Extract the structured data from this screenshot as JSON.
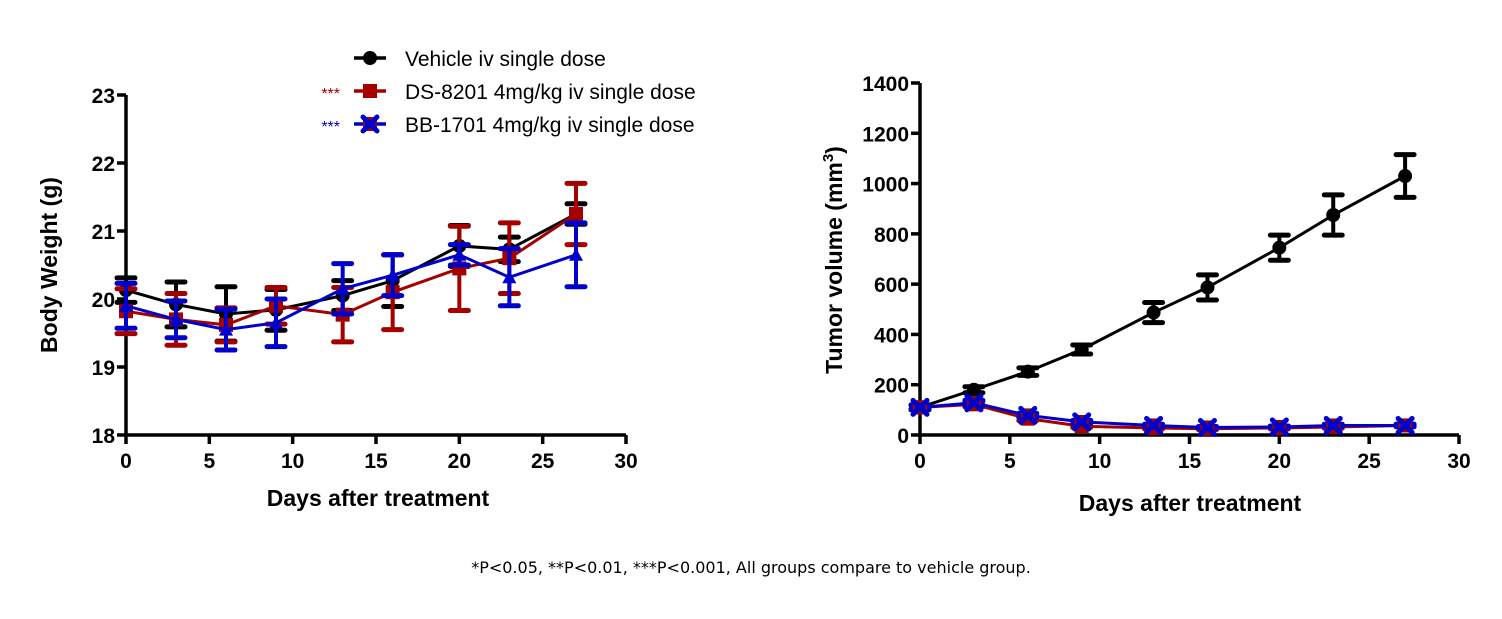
{
  "legend": [
    {
      "label": "Vehicle iv single dose",
      "color": "#000000",
      "marker": "circle",
      "sig": ""
    },
    {
      "label": "DS-8201 4mg/kg iv single dose",
      "color": "#a50000",
      "marker": "square",
      "sig": "***"
    },
    {
      "label": "BB-1701 4mg/kg iv single dose",
      "color": "#0000cc",
      "marker": "x",
      "sig": "***"
    }
  ],
  "footnote": "*P<0.05, **P<0.01, ***P<0.001,  All groups compare to vehicle group.",
  "chart_data": [
    {
      "type": "line",
      "title": "",
      "xlabel": "Days after treatment",
      "ylabel": "Body Weight (g)",
      "xlim": [
        0,
        30
      ],
      "ylim": [
        18,
        23
      ],
      "xticks": [
        "0",
        "5",
        "10",
        "15",
        "20",
        "25",
        "30"
      ],
      "yticks": [
        "18",
        "19",
        "20",
        "21",
        "22",
        "23"
      ],
      "grid": false,
      "x": [
        0,
        3,
        6,
        9,
        13,
        16,
        20,
        23,
        27
      ],
      "series": [
        {
          "name": "Vehicle iv single dose",
          "color": "#000000",
          "marker": "circle",
          "values": [
            20.13,
            19.92,
            19.78,
            19.84,
            20.05,
            20.27,
            20.78,
            20.73,
            21.25
          ],
          "errors": [
            0.18,
            0.33,
            0.4,
            0.3,
            0.22,
            0.38,
            0.3,
            0.18,
            0.15
          ]
        },
        {
          "name": "DS-8201 4mg/kg iv single dose",
          "color": "#a50000",
          "marker": "square",
          "values": [
            19.82,
            19.7,
            19.62,
            19.9,
            19.77,
            20.1,
            20.45,
            20.6,
            21.25
          ],
          "errors": [
            0.33,
            0.38,
            0.25,
            0.27,
            0.4,
            0.55,
            0.62,
            0.52,
            0.45
          ]
        },
        {
          "name": "BB-1701 4mg/kg iv single dose",
          "color": "#0000cc",
          "marker": "triangle",
          "values": [
            19.9,
            19.7,
            19.55,
            19.65,
            20.15,
            20.35,
            20.65,
            20.32,
            20.65
          ],
          "errors": [
            0.33,
            0.27,
            0.3,
            0.35,
            0.37,
            0.3,
            0.15,
            0.42,
            0.47
          ]
        }
      ]
    },
    {
      "type": "line",
      "title": "",
      "xlabel": "Days after treatment",
      "ylabel": "Tumor volume (mm",
      "ylabel_sup": "3",
      "ylabel_end": ")",
      "xlim": [
        0,
        30
      ],
      "ylim": [
        0,
        1400
      ],
      "xticks": [
        "0",
        "5",
        "10",
        "15",
        "20",
        "25",
        "30"
      ],
      "yticks": [
        "0",
        "200",
        "400",
        "600",
        "800",
        "1000",
        "1200",
        "1400"
      ],
      "grid": false,
      "x": [
        0,
        3,
        6,
        9,
        13,
        16,
        20,
        23,
        27
      ],
      "series": [
        {
          "name": "Vehicle iv single dose",
          "color": "#000000",
          "marker": "circle",
          "values": [
            110,
            180,
            252,
            340,
            487,
            587,
            745,
            875,
            1030
          ],
          "errors": [
            10,
            12,
            15,
            18,
            40,
            50,
            50,
            80,
            85
          ]
        },
        {
          "name": "DS-8201 4mg/kg iv single dose",
          "color": "#a50000",
          "marker": "square",
          "values": [
            110,
            122,
            65,
            35,
            28,
            25,
            28,
            32,
            38
          ],
          "errors": [
            8,
            10,
            8,
            5,
            4,
            4,
            4,
            5,
            5
          ]
        },
        {
          "name": "BB-1701 4mg/kg iv single dose",
          "color": "#0000cc",
          "marker": "x",
          "values": [
            110,
            128,
            78,
            52,
            38,
            30,
            32,
            38,
            38
          ],
          "errors": [
            8,
            10,
            8,
            6,
            5,
            4,
            4,
            5,
            5
          ]
        }
      ]
    }
  ]
}
